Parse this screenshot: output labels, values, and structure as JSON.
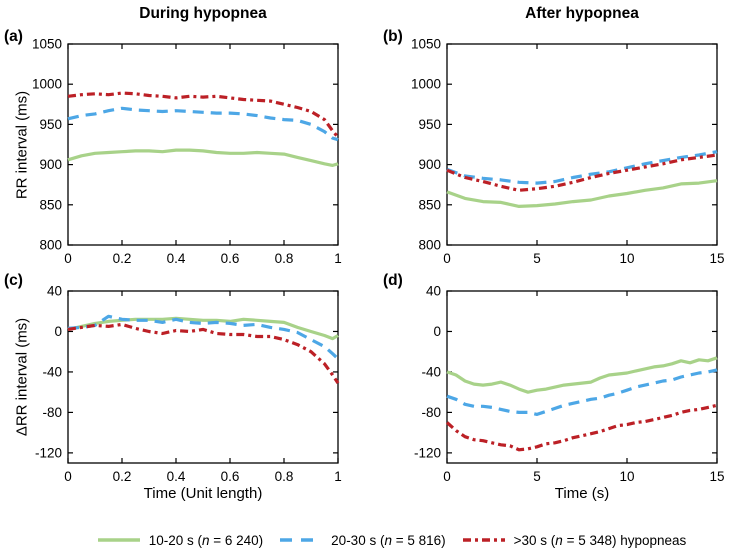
{
  "figure": {
    "col_titles": [
      "During hypopnea",
      "After hypopnea"
    ],
    "panel_labels": [
      "(a)",
      "(b)",
      "(c)",
      "(d)"
    ],
    "ylabel_top": "RR interval (ms)",
    "ylabel_bottom": "ΔRR interval (ms)",
    "xlabel_left": "Time (Unit length)",
    "xlabel_right": "Time (s)"
  },
  "legend": {
    "items": [
      {
        "pre": "10-20 s (",
        "var": "n",
        "post": " = 6 240)",
        "color_key": "green",
        "style": "solid"
      },
      {
        "pre": "20-30 s (",
        "var": "n",
        "post": " = 5 816)",
        "color_key": "blue",
        "style": "dashed"
      },
      {
        "pre": ">30 s (",
        "var": "n",
        "post": " = 5 348) hypopneas",
        "color_key": "red",
        "style": "dashdot"
      }
    ]
  },
  "colors": {
    "green": "#a8d289",
    "blue": "#4da7e6",
    "red": "#bc2026",
    "axis": "#000000",
    "text": "#000000"
  },
  "chart_data": [
    {
      "id": "a",
      "type": "line",
      "title": "During hypopnea",
      "xlabel": "",
      "ylabel": "RR interval (ms)",
      "xlim": [
        0,
        1
      ],
      "ylim": [
        800,
        1050
      ],
      "xticks": [
        0,
        0.2,
        0.4,
        0.6,
        0.8,
        1
      ],
      "yticks": [
        800,
        850,
        900,
        950,
        1000,
        1050
      ],
      "series": [
        {
          "name": "10-20 s (n = 6 240) hypopneas",
          "color_key": "green",
          "style": "solid",
          "x": [
            0,
            0.05,
            0.1,
            0.15,
            0.2,
            0.25,
            0.3,
            0.35,
            0.4,
            0.45,
            0.5,
            0.55,
            0.6,
            0.65,
            0.7,
            0.75,
            0.8,
            0.85,
            0.9,
            0.95,
            0.98,
            1
          ],
          "y": [
            906,
            911,
            914,
            915,
            916,
            917,
            917,
            916,
            918,
            918,
            917,
            915,
            914,
            914,
            915,
            914,
            913,
            909,
            905,
            901,
            899,
            901
          ]
        },
        {
          "name": "20-30 s (n = 5 816) hypopneas",
          "color_key": "blue",
          "style": "dashed",
          "x": [
            0,
            0.05,
            0.1,
            0.15,
            0.2,
            0.25,
            0.3,
            0.35,
            0.4,
            0.45,
            0.5,
            0.55,
            0.6,
            0.65,
            0.7,
            0.75,
            0.8,
            0.85,
            0.9,
            0.95,
            0.98,
            1
          ],
          "y": [
            957,
            961,
            963,
            967,
            970,
            968,
            967,
            966,
            967,
            966,
            965,
            964,
            964,
            963,
            961,
            958,
            956,
            955,
            950,
            941,
            933,
            931
          ]
        },
        {
          "name": ">30 s (n = 5 348) hypopneas",
          "color_key": "red",
          "style": "dashdot",
          "x": [
            0,
            0.05,
            0.1,
            0.15,
            0.2,
            0.25,
            0.3,
            0.35,
            0.4,
            0.45,
            0.5,
            0.55,
            0.6,
            0.65,
            0.7,
            0.75,
            0.8,
            0.85,
            0.9,
            0.95,
            0.98,
            1
          ],
          "y": [
            985,
            987,
            988,
            987,
            989,
            988,
            986,
            985,
            983,
            985,
            984,
            985,
            983,
            981,
            980,
            979,
            975,
            971,
            966,
            956,
            942,
            934
          ]
        }
      ]
    },
    {
      "id": "b",
      "type": "line",
      "title": "After hypopnea",
      "xlabel": "",
      "ylabel": "",
      "xlim": [
        0,
        15
      ],
      "ylim": [
        800,
        1050
      ],
      "xticks": [
        0,
        5,
        10,
        15
      ],
      "yticks": [
        800,
        850,
        900,
        950,
        1000,
        1050
      ],
      "series": [
        {
          "name": "10-20 s (n = 6 240) hypopneas",
          "color_key": "green",
          "style": "solid",
          "x": [
            0,
            1,
            2,
            3,
            4,
            5,
            6,
            7,
            8,
            9,
            10,
            11,
            12,
            13,
            14,
            15
          ],
          "y": [
            866,
            858,
            854,
            853,
            848,
            849,
            851,
            854,
            856,
            861,
            864,
            868,
            871,
            876,
            877,
            880
          ]
        },
        {
          "name": "20-30 s (n = 5 816) hypopneas",
          "color_key": "blue",
          "style": "dashed",
          "x": [
            0,
            1,
            2,
            3,
            4,
            5,
            6,
            7,
            8,
            9,
            10,
            11,
            12,
            13,
            14,
            15
          ],
          "y": [
            894,
            886,
            883,
            881,
            878,
            877,
            879,
            884,
            888,
            891,
            896,
            901,
            905,
            909,
            912,
            916
          ]
        },
        {
          "name": ">30 s (n = 5 348) hypopneas",
          "color_key": "red",
          "style": "dashdot",
          "x": [
            0,
            1,
            2,
            3,
            4,
            5,
            6,
            7,
            8,
            9,
            10,
            11,
            12,
            13,
            14,
            15
          ],
          "y": [
            893,
            884,
            879,
            873,
            868,
            870,
            873,
            878,
            884,
            889,
            893,
            897,
            901,
            906,
            909,
            912
          ]
        }
      ]
    },
    {
      "id": "c",
      "type": "line",
      "title": "",
      "xlabel": "Time (Unit length)",
      "ylabel": "ΔRR interval (ms)",
      "xlim": [
        0,
        1
      ],
      "ylim": [
        -130,
        40
      ],
      "xticks": [
        0,
        0.2,
        0.4,
        0.6,
        0.8,
        1
      ],
      "yticks": [
        -120,
        -80,
        -40,
        0,
        40
      ],
      "series": [
        {
          "name": "10-20 s (n = 6 240) hypopneas",
          "color_key": "green",
          "style": "solid",
          "x": [
            0,
            0.05,
            0.1,
            0.15,
            0.2,
            0.25,
            0.3,
            0.35,
            0.4,
            0.45,
            0.5,
            0.55,
            0.6,
            0.65,
            0.7,
            0.75,
            0.8,
            0.85,
            0.9,
            0.95,
            0.98,
            1
          ],
          "y": [
            2,
            5,
            8,
            10,
            11,
            12,
            12,
            12,
            13,
            12,
            11,
            11,
            10,
            12,
            11,
            10,
            9,
            4,
            0,
            -4,
            -7,
            -4
          ]
        },
        {
          "name": "20-30 s (n = 5 816) hypopneas",
          "color_key": "blue",
          "style": "dashed",
          "x": [
            0,
            0.05,
            0.1,
            0.15,
            0.2,
            0.25,
            0.3,
            0.35,
            0.4,
            0.45,
            0.5,
            0.55,
            0.6,
            0.65,
            0.7,
            0.75,
            0.8,
            0.85,
            0.9,
            0.95,
            0.98,
            1
          ],
          "y": [
            3,
            4,
            6,
            15,
            12,
            11,
            11,
            9,
            12,
            9,
            8,
            9,
            8,
            6,
            7,
            4,
            2,
            -1,
            -8,
            -15,
            -22,
            -27
          ]
        },
        {
          "name": ">30 s (n = 5 348) hypopneas",
          "color_key": "red",
          "style": "dashdot",
          "x": [
            0,
            0.05,
            0.1,
            0.15,
            0.2,
            0.25,
            0.3,
            0.35,
            0.4,
            0.45,
            0.5,
            0.55,
            0.6,
            0.65,
            0.7,
            0.75,
            0.8,
            0.85,
            0.9,
            0.95,
            0.98,
            1
          ],
          "y": [
            2,
            4,
            6,
            5,
            7,
            3,
            0,
            -2,
            1,
            0,
            2,
            -2,
            -3,
            -3,
            -5,
            -5,
            -8,
            -13,
            -20,
            -32,
            -43,
            -51
          ]
        }
      ]
    },
    {
      "id": "d",
      "type": "line",
      "title": "",
      "xlabel": "Time (s)",
      "ylabel": "",
      "xlim": [
        0,
        15
      ],
      "ylim": [
        -130,
        40
      ],
      "xticks": [
        0,
        5,
        10,
        15
      ],
      "yticks": [
        -120,
        -80,
        -40,
        0,
        40
      ],
      "series": [
        {
          "name": "10-20 s (n = 6 240) hypopneas",
          "color_key": "green",
          "style": "solid",
          "x": [
            0,
            0.5,
            1,
            1.5,
            2,
            2.5,
            3,
            3.5,
            4,
            4.5,
            5,
            5.5,
            6,
            6.5,
            7,
            7.5,
            8,
            8.5,
            9,
            9.5,
            10,
            10.5,
            11,
            11.5,
            12,
            12.5,
            13,
            13.5,
            14,
            14.5,
            15
          ],
          "y": [
            -40,
            -43,
            -49,
            -52,
            -53,
            -52,
            -50,
            -53,
            -57,
            -60,
            -58,
            -57,
            -55,
            -53,
            -52,
            -51,
            -50,
            -46,
            -43,
            -42,
            -41,
            -39,
            -37,
            -35,
            -34,
            -32,
            -29,
            -31,
            -28,
            -29,
            -26
          ]
        },
        {
          "name": "20-30 s (n = 5 816) hypopneas",
          "color_key": "blue",
          "style": "dashed",
          "x": [
            0,
            0.5,
            1,
            1.5,
            2,
            2.5,
            3,
            3.5,
            4,
            4.5,
            5,
            5.5,
            6,
            6.5,
            7,
            7.5,
            8,
            8.5,
            9,
            9.5,
            10,
            10.5,
            11,
            11.5,
            12,
            12.5,
            13,
            13.5,
            14,
            14.5,
            15
          ],
          "y": [
            -64,
            -67,
            -72,
            -74,
            -74,
            -75,
            -77,
            -79,
            -80,
            -80,
            -82,
            -79,
            -76,
            -73,
            -71,
            -69,
            -67,
            -66,
            -63,
            -61,
            -58,
            -55,
            -53,
            -51,
            -49,
            -48,
            -45,
            -43,
            -41,
            -40,
            -38
          ]
        },
        {
          "name": ">30 s (n = 5 348) hypopneas",
          "color_key": "red",
          "style": "dashdot",
          "x": [
            0,
            0.5,
            1,
            1.5,
            2,
            2.5,
            3,
            3.5,
            4,
            4.5,
            5,
            5.5,
            6,
            6.5,
            7,
            7.5,
            8,
            8.5,
            9,
            9.5,
            10,
            10.5,
            11,
            11.5,
            12,
            12.5,
            13,
            13.5,
            14,
            14.5,
            15
          ],
          "y": [
            -90,
            -98,
            -104,
            -107,
            -108,
            -110,
            -112,
            -113,
            -117,
            -116,
            -114,
            -111,
            -110,
            -108,
            -105,
            -103,
            -101,
            -99,
            -96,
            -93,
            -92,
            -90,
            -89,
            -87,
            -85,
            -83,
            -80,
            -78,
            -77,
            -75,
            -73
          ]
        }
      ]
    }
  ]
}
